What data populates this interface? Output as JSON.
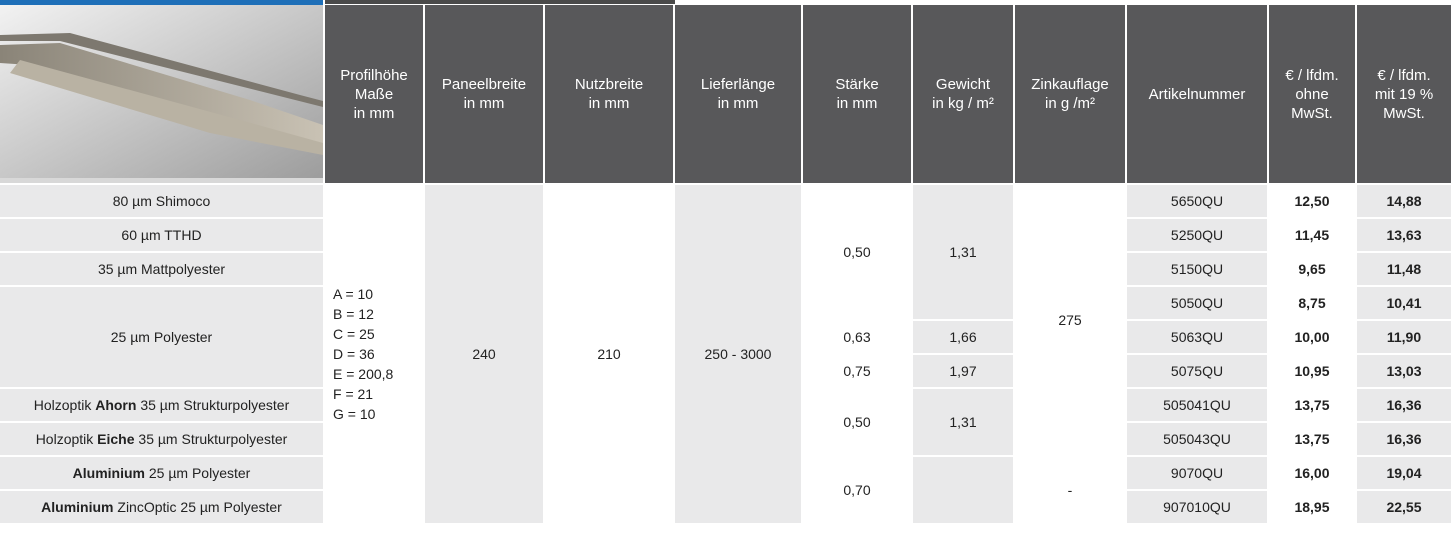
{
  "header": {
    "columns": [
      [
        "Profilhöhe",
        "Maße",
        "in mm"
      ],
      [
        "Paneelbreite",
        "in mm"
      ],
      [
        "Nutzbreite",
        "in mm"
      ],
      [
        "Lieferlänge",
        "in mm"
      ],
      [
        "Stärke",
        "in mm"
      ],
      [
        "Gewicht",
        "in kg / m²"
      ],
      [
        "Zinkauflage",
        "in g /m²"
      ],
      [
        "Artikelnummer"
      ],
      [
        "€ / lfdm.",
        "ohne",
        "MwSt."
      ],
      [
        "€ / lfdm.",
        "mit 19 %",
        "MwSt."
      ]
    ]
  },
  "table": {
    "products": [
      [
        "80 µm Shimoco"
      ],
      [
        "60 µm TTHD"
      ],
      [
        "35 µm Mattpolyester"
      ],
      [
        "25 µm Polyester"
      ],
      [
        "Holzoptik ",
        "Ahorn",
        " 35 µm Strukturpolyester"
      ],
      [
        "Holzoptik ",
        "Eiche",
        " 35 µm Strukturpolyester"
      ],
      [
        "Aluminium",
        " 25 µm Polyester"
      ],
      [
        "Aluminium",
        " ZincOptic 25 µm Polyester"
      ]
    ],
    "profile": [
      "A = 10",
      "B = 12",
      "C = 25",
      "D = 36",
      "E = 200,8",
      "F = 21",
      "G = 10"
    ],
    "panel_width": "240",
    "usable_width": "210",
    "length": "250 - 3000",
    "thickness": [
      "0,50",
      "0,63",
      "0,75",
      "0,50",
      "0,70"
    ],
    "weight": [
      "1,31",
      "1,66",
      "1,97",
      "1,31"
    ],
    "zinc": [
      "275",
      "-"
    ],
    "articles": [
      "5650QU",
      "5250QU",
      "5150QU",
      "5050QU",
      "5063QU",
      "5075QU",
      "505041QU",
      "505043QU",
      "9070QU",
      "907010QU"
    ],
    "price_net": [
      "12,50",
      "11,45",
      "9,65",
      "8,75",
      "10,00",
      "10,95",
      "13,75",
      "13,75",
      "16,00",
      "18,95"
    ],
    "price_gross": [
      "14,88",
      "13,63",
      "11,48",
      "10,41",
      "11,90",
      "13,03",
      "16,36",
      "16,36",
      "19,04",
      "22,55"
    ]
  }
}
